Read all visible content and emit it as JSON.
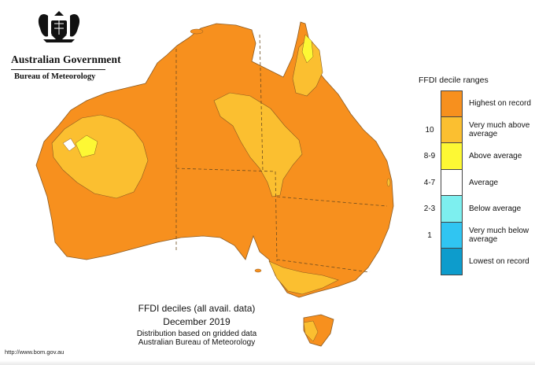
{
  "header": {
    "government": "Australian Government",
    "bureau": "Bureau of Meteorology"
  },
  "legend": {
    "title": "FFDI decile ranges",
    "items": [
      {
        "code": "",
        "label": "Highest on record",
        "color": "#f7901e"
      },
      {
        "code": "10",
        "label": "Very much above average",
        "color": "#fbbf30"
      },
      {
        "code": "8-9",
        "label": "Above average",
        "color": "#fdf834"
      },
      {
        "code": "4-7",
        "label": "Average",
        "color": "#ffffff"
      },
      {
        "code": "2-3",
        "label": "Below average",
        "color": "#7defef"
      },
      {
        "code": "1",
        "label": "Very much below average",
        "color": "#30c5f2"
      },
      {
        "code": "",
        "label": "Lowest on record",
        "color": "#0d9ccc"
      }
    ]
  },
  "caption": {
    "title": "FFDI deciles (all avail. data)",
    "period": "December 2019",
    "line1": "Distribution based on gridded data",
    "line2": "Australian Bureau of Meteorology"
  },
  "footer": {
    "url": "http://www.bom.gov.au"
  },
  "map_colors": {
    "highest": "#f7901e",
    "very_much_above": "#fbbf30",
    "above": "#fdf834",
    "average": "#ffffff",
    "border": "#6d4c1f"
  }
}
